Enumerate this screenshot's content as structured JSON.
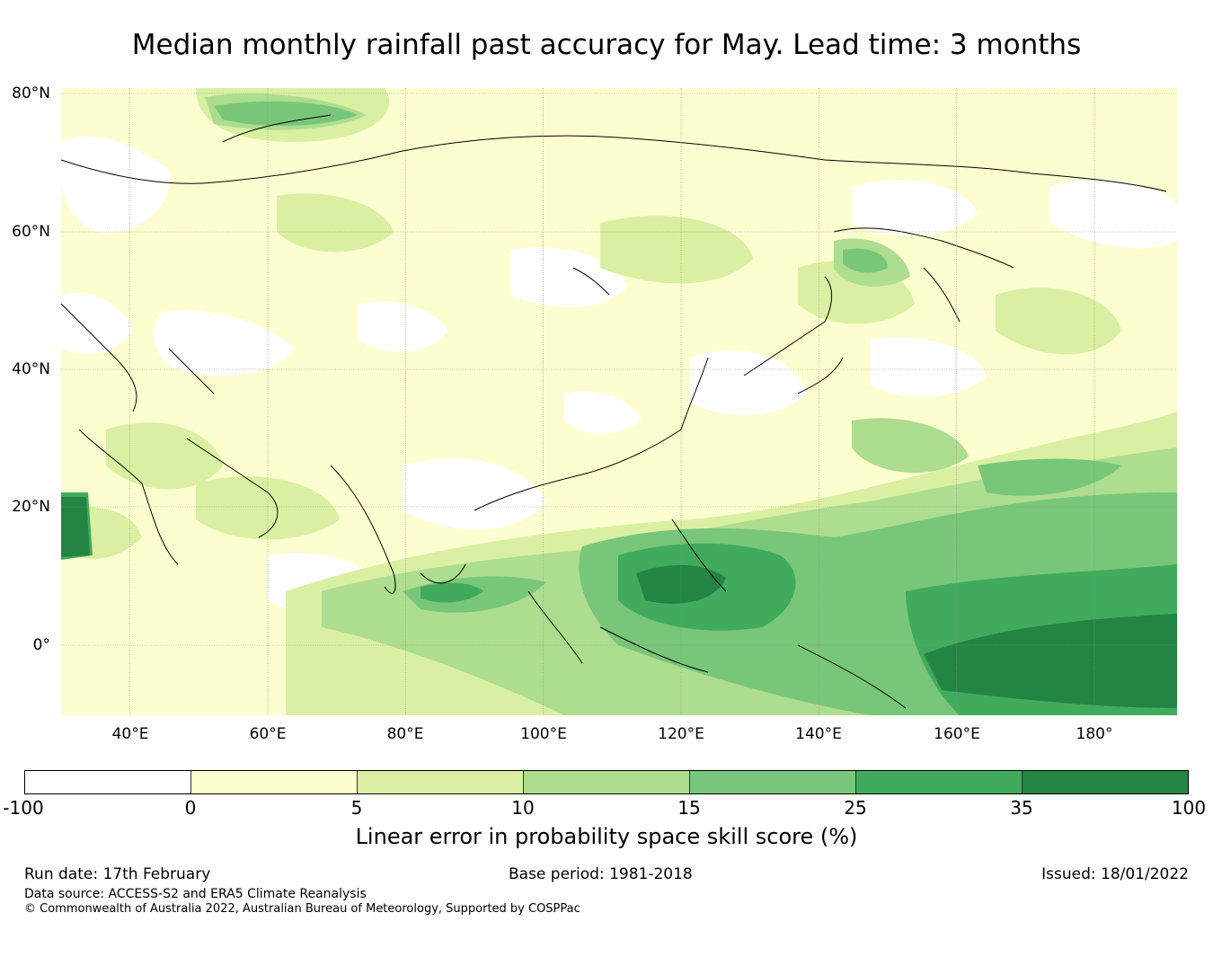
{
  "title": "Median monthly rainfall past accuracy for May. Lead time: 3 months",
  "map": {
    "lat_labels": [
      "80°N",
      "60°N",
      "40°N",
      "20°N",
      "0°"
    ],
    "lon_labels": [
      "40°E",
      "60°E",
      "80°E",
      "100°E",
      "120°E",
      "140°E",
      "160°E",
      "180°"
    ],
    "lon_range": [
      30,
      192
    ],
    "lat_range": [
      -10,
      80
    ],
    "grid": true
  },
  "colorbar": {
    "ticks": [
      "-100",
      "0",
      "5",
      "10",
      "15",
      "25",
      "35",
      "100"
    ],
    "colors": [
      "#ffffff",
      "#fdfed0",
      "#d9f0a3",
      "#addd8e",
      "#78c679",
      "#41ab5d",
      "#238443"
    ],
    "label": "Linear error in probability space skill score (%)"
  },
  "footer": {
    "run_date": "Run date: 17th February",
    "base_period": "Base period: 1981-2018",
    "issued": "Issued: 18/01/2022",
    "data_source": "Data source: ACCESS-S2 and ERA5 Climate Reanalysis",
    "copyright": "© Commonwealth of Australia 2022, Australian Bureau of Meteorology, Supported by COSPPac"
  }
}
